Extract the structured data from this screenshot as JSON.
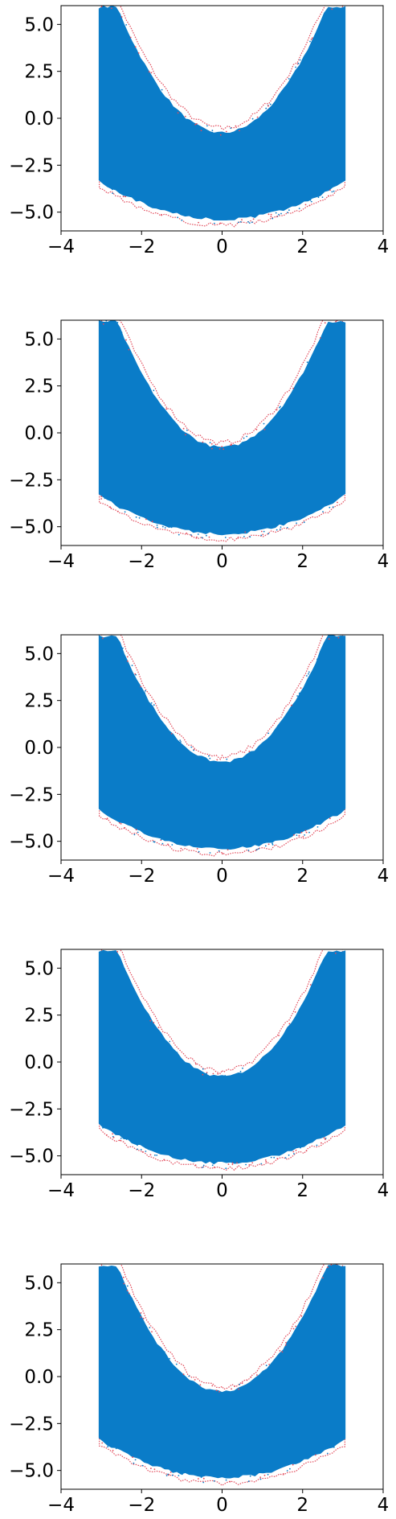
{
  "figure": {
    "background": "#ffffff",
    "fill_color": "#0a7cc8",
    "edge_color": "#e24a5a",
    "tick_color": "#000000"
  },
  "chart_data": [
    {
      "type": "scatter",
      "title": "",
      "xlabel": "",
      "ylabel": "",
      "xlim": [
        -4,
        4
      ],
      "ylim": [
        -6,
        6
      ],
      "xticks": [
        -4,
        -2,
        0,
        2,
        4
      ],
      "yticks": [
        5.0,
        2.5,
        0.0,
        -2.5,
        -5.0
      ],
      "xtick_labels": [
        "−4",
        "−2",
        "0",
        "2",
        "4"
      ],
      "ytick_labels": [
        "5.0",
        "2.5",
        "0.0",
        "−2.5",
        "−5.0"
      ],
      "grid": false,
      "series": [
        {
          "color": "#0a7cc8",
          "values": "banana-shaped point cloud (y ≈ x² − 4) spanning x ∈ [−3, 3], y ∈ [−5.5, 5.8]"
        },
        {
          "color": "#e24a5a",
          "values": "sparse trajectory points along the outer boundary of the cloud"
        }
      ]
    },
    {
      "type": "scatter",
      "title": "",
      "xlabel": "",
      "ylabel": "",
      "xlim": [
        -4,
        4
      ],
      "ylim": [
        -6,
        6
      ],
      "xticks": [
        -4,
        -2,
        0,
        2,
        4
      ],
      "yticks": [
        5.0,
        2.5,
        0.0,
        -2.5,
        -5.0
      ],
      "xtick_labels": [
        "−4",
        "−2",
        "0",
        "2",
        "4"
      ],
      "ytick_labels": [
        "5.0",
        "2.5",
        "0.0",
        "−2.5",
        "−5.0"
      ],
      "grid": false,
      "series": [
        {
          "color": "#0a7cc8",
          "values": "banana-shaped point cloud (y ≈ x² − 4) spanning x ∈ [−3, 3], y ∈ [−5.6, 6.0]"
        },
        {
          "color": "#e24a5a",
          "values": "sparse trajectory points along the outer boundary of the cloud"
        }
      ]
    },
    {
      "type": "scatter",
      "title": "",
      "xlabel": "",
      "ylabel": "",
      "xlim": [
        -4,
        4
      ],
      "ylim": [
        -6,
        6
      ],
      "xticks": [
        -4,
        -2,
        0,
        2,
        4
      ],
      "yticks": [
        5.0,
        2.5,
        0.0,
        -2.5,
        -5.0
      ],
      "xtick_labels": [
        "−4",
        "−2",
        "0",
        "2",
        "4"
      ],
      "ytick_labels": [
        "5.0",
        "2.5",
        "0.0",
        "−2.5",
        "−5.0"
      ],
      "grid": false,
      "series": [
        {
          "color": "#0a7cc8",
          "values": "banana-shaped point cloud (y ≈ x² − 4) spanning x ∈ [−3, 3], y ∈ [−5.6, 6.0]"
        },
        {
          "color": "#e24a5a",
          "values": "sparse trajectory points along the outer boundary of the cloud"
        }
      ]
    },
    {
      "type": "scatter",
      "title": "",
      "xlabel": "",
      "ylabel": "",
      "xlim": [
        -4,
        4
      ],
      "ylim": [
        -6,
        6
      ],
      "xticks": [
        -4,
        -2,
        0,
        2,
        4
      ],
      "yticks": [
        5.0,
        2.5,
        0.0,
        -2.5,
        -5.0
      ],
      "xtick_labels": [
        "−4",
        "−2",
        "0",
        "2",
        "4"
      ],
      "ytick_labels": [
        "5.0",
        "2.5",
        "0.0",
        "−2.5",
        "−5.0"
      ],
      "grid": false,
      "series": [
        {
          "color": "#0a7cc8",
          "values": "banana-shaped point cloud (y ≈ x² − 4) spanning x ∈ [−3, 3], y ∈ [−5.8, 6.0]"
        },
        {
          "color": "#e24a5a",
          "values": "sparse trajectory points along the outer boundary of the cloud"
        }
      ]
    },
    {
      "type": "scatter",
      "title": "",
      "xlabel": "",
      "ylabel": "",
      "xlim": [
        -4,
        4
      ],
      "ylim": [
        -6,
        6
      ],
      "xticks": [
        -4,
        -2,
        0,
        2,
        4
      ],
      "yticks": [
        5.0,
        2.5,
        0.0,
        -2.5,
        -5.0
      ],
      "xtick_labels": [
        "−4",
        "−2",
        "0",
        "2",
        "4"
      ],
      "ytick_labels": [
        "5.0",
        "2.5",
        "0.0",
        "−2.5",
        "−5.0"
      ],
      "grid": false,
      "series": [
        {
          "color": "#0a7cc8",
          "values": "banana-shaped point cloud (y ≈ x² − 4) spanning x ∈ [−3, 3], y ∈ [−5.6, 6.0]"
        },
        {
          "color": "#e24a5a",
          "values": "sparse trajectory points along the outer boundary of the cloud"
        }
      ]
    }
  ]
}
